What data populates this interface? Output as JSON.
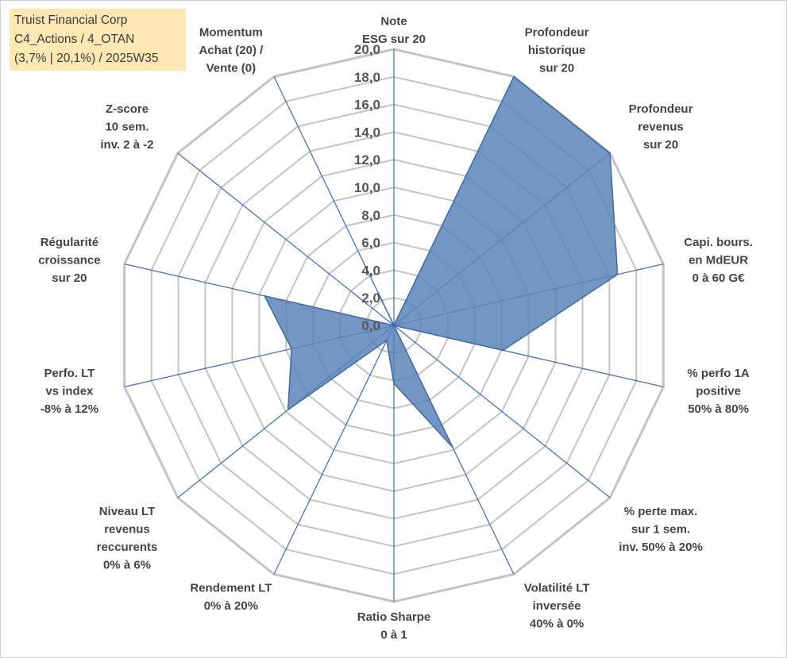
{
  "info_box": {
    "line1": "Truist Financial Corp",
    "line2": "C4_Actions / 4_OTAN",
    "line3": "(3,7% | 20,1%) / 2025W35"
  },
  "colors": {
    "fill": "#5b84b8",
    "stroke": "#3f6aa6",
    "spokes": "#4472c4",
    "rings": "#c3c3c3",
    "info_bg": "#fde7b2"
  },
  "chart_data": {
    "type": "radar",
    "rlim": [
      0,
      20
    ],
    "tick_labels": [
      "0,0",
      "2,0",
      "4,0",
      "6,0",
      "8,0",
      "10,0",
      "12,0",
      "14,0",
      "16,0",
      "18,0",
      "20,0"
    ],
    "axes": [
      {
        "lines": [
          "Note",
          "ESG sur 20"
        ],
        "value": 0
      },
      {
        "lines": [
          "Profondeur",
          "historique",
          "sur 20"
        ],
        "value": 20
      },
      {
        "lines": [
          "Profondeur",
          "revenus",
          "sur 20"
        ],
        "value": 20
      },
      {
        "lines": [
          "Capi. bours.",
          "en MdEUR",
          "0 à 60 G€"
        ],
        "value": 16.6
      },
      {
        "lines": [
          "% perfo 1A",
          "positive",
          "50% à 80%"
        ],
        "value": 8.1
      },
      {
        "lines": [
          "% perte max.",
          "sur 1 sem.",
          "inv. 50% à 20%"
        ],
        "value": 0
      },
      {
        "lines": [
          "Volatilité LT",
          "inversée",
          "40% à 0%"
        ],
        "value": 9.8
      },
      {
        "lines": [
          "Ratio Sharpe",
          "0 à 1"
        ],
        "value": 4.2
      },
      {
        "lines": [
          "Rendement LT",
          "0% à 20%"
        ],
        "value": 1.2
      },
      {
        "lines": [
          "Niveau LT",
          "revenus",
          "reccurents",
          "0% à 6%"
        ],
        "value": 9.8
      },
      {
        "lines": [
          "Perfo. LT",
          "vs index",
          "-8% à 12%"
        ],
        "value": 7.6
      },
      {
        "lines": [
          "Régularité",
          "croissance",
          "sur 20"
        ],
        "value": 9.6
      },
      {
        "lines": [
          "Z-score",
          "10 sem.",
          "inv. 2 à -2"
        ],
        "value": 0
      },
      {
        "lines": [
          "Momentum",
          "Achat (20) /",
          "Vente (0)"
        ],
        "value": 2.6
      }
    ]
  }
}
